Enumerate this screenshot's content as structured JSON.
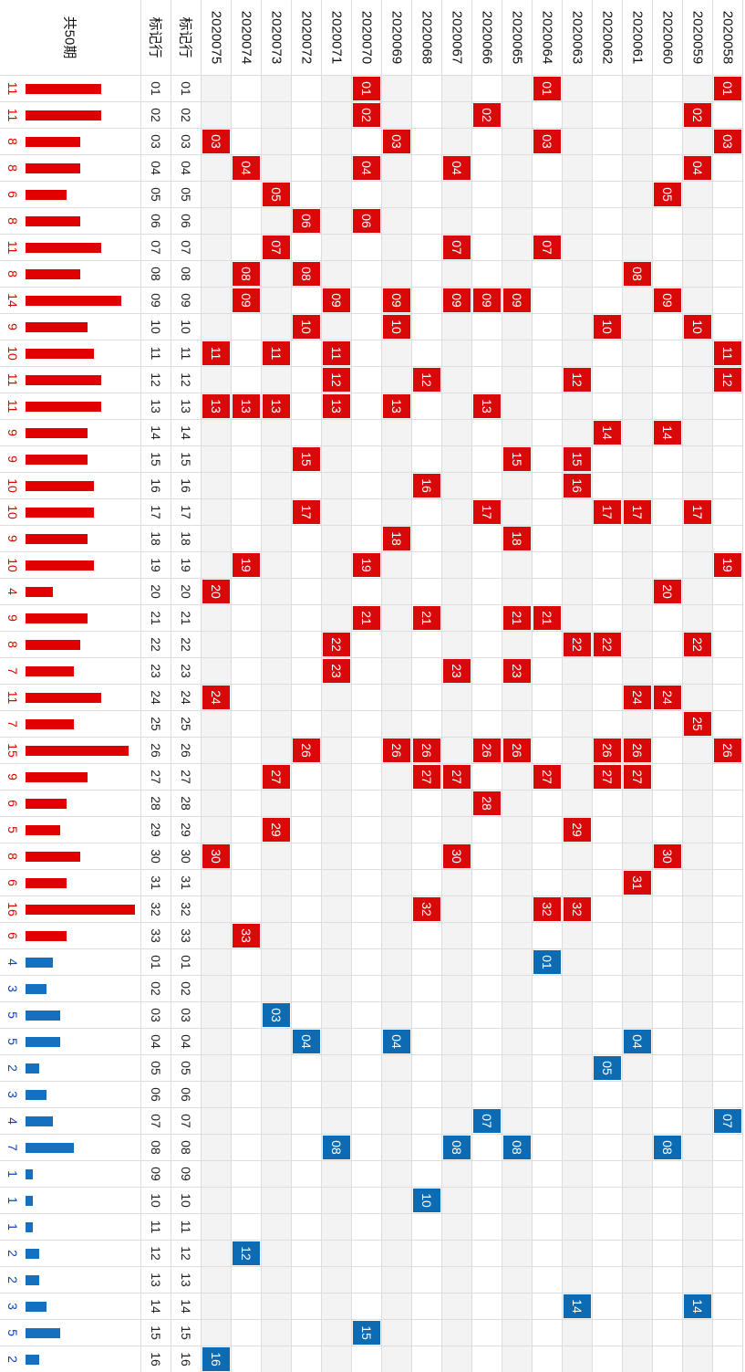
{
  "chart_data": {
    "type": "table",
    "title": "共50期",
    "label_column_header": "标记行",
    "periods": [
      "2020075",
      "2020074",
      "2020073",
      "2020072",
      "2020071",
      "2020070",
      "2020069",
      "2020068",
      "2020067",
      "2020066",
      "2020065",
      "2020064",
      "2020063",
      "2020062",
      "2020061",
      "2020060",
      "2020059",
      "2020058"
    ],
    "red_rows": [
      "01",
      "02",
      "03",
      "04",
      "05",
      "06",
      "07",
      "08",
      "09",
      "10",
      "11",
      "12",
      "13",
      "14",
      "15",
      "16",
      "17",
      "18",
      "19",
      "20",
      "21",
      "22",
      "23",
      "24",
      "25",
      "26",
      "27",
      "28",
      "29",
      "30",
      "31",
      "32",
      "33"
    ],
    "red_counts": [
      11,
      11,
      8,
      8,
      6,
      8,
      11,
      8,
      14,
      9,
      10,
      11,
      11,
      9,
      9,
      10,
      10,
      9,
      10,
      4,
      9,
      8,
      7,
      11,
      7,
      15,
      9,
      6,
      5,
      8,
      6,
      16,
      6
    ],
    "blue_rows": [
      "01",
      "02",
      "03",
      "04",
      "05",
      "06",
      "07",
      "08",
      "09",
      "10",
      "11",
      "12",
      "13",
      "14",
      "15",
      "16"
    ],
    "blue_counts": [
      4,
      3,
      5,
      5,
      2,
      3,
      4,
      7,
      1,
      1,
      1,
      2,
      2,
      3,
      5,
      2
    ],
    "red_hits": {
      "2020075": [
        "03",
        "11",
        "13",
        "20",
        "24",
        "30"
      ],
      "2020074": [
        "04",
        "08",
        "09",
        "13",
        "19",
        "33"
      ],
      "2020073": [
        "05",
        "07",
        "11",
        "13",
        "27",
        "29"
      ],
      "2020072": [
        "06",
        "08",
        "10",
        "15",
        "17",
        "26"
      ],
      "2020071": [
        "09",
        "11",
        "12",
        "13",
        "22",
        "23"
      ],
      "2020070": [
        "01",
        "02",
        "04",
        "06",
        "19",
        "21"
      ],
      "2020069": [
        "03",
        "09",
        "10",
        "13",
        "18",
        "26"
      ],
      "2020068": [
        "12",
        "16",
        "21",
        "26",
        "27",
        "32"
      ],
      "2020067": [
        "04",
        "07",
        "09",
        "23",
        "27",
        "30"
      ],
      "2020066": [
        "02",
        "09",
        "13",
        "17",
        "26",
        "28"
      ],
      "2020065": [
        "09",
        "15",
        "18",
        "21",
        "23",
        "26"
      ],
      "2020064": [
        "01",
        "03",
        "07",
        "21",
        "27",
        "32"
      ],
      "2020063": [
        "12",
        "15",
        "16",
        "22",
        "29",
        "32"
      ],
      "2020062": [
        "10",
        "14",
        "17",
        "22",
        "26",
        "27"
      ],
      "2020061": [
        "08",
        "17",
        "24",
        "26",
        "27",
        "31"
      ],
      "2020060": [
        "05",
        "09",
        "14",
        "20",
        "24",
        "30"
      ],
      "2020059": [
        "02",
        "04",
        "10",
        "17",
        "22",
        "25"
      ],
      "2020058": [
        "01",
        "03",
        "11",
        "12",
        "19",
        "26"
      ]
    },
    "blue_hits": {
      "2020075": "16",
      "2020074": "12",
      "2020073": "03",
      "2020072": "04",
      "2020071": "08",
      "2020070": "15",
      "2020069": "04",
      "2020068": "10",
      "2020067": "08",
      "2020066": "07",
      "2020065": "08",
      "2020064": "01",
      "2020063": "14",
      "2020062": "05",
      "2020061": "04",
      "2020060": "08",
      "2020059": "14",
      "2020058": "07"
    },
    "colors": {
      "red": "#d9090a",
      "blue": "#0c6bb3",
      "red_text": "#e00000",
      "blue_text": "#1040c0"
    }
  }
}
